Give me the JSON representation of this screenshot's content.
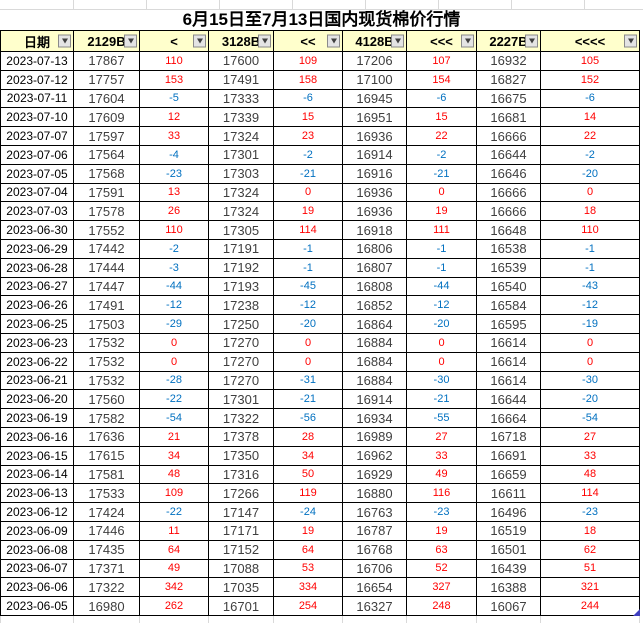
{
  "title": "6月15日至7月13日国内现货棉价行情",
  "colors": {
    "header_bg": "#FFFFCC",
    "header_text": "#000000",
    "positive_change": "#FF0000",
    "negative_change": "#0070C0",
    "price_text": "#3F3F3F",
    "date_text": "#000000",
    "table_border": "#000000",
    "sheet_gridline": "#D9D9D9",
    "selection_handle": "#3F3FBF"
  },
  "icons": {
    "filter_dropdown": "chevron-down"
  },
  "table": {
    "columns": [
      {
        "label": "日期",
        "type": "date"
      },
      {
        "label": "2129B",
        "type": "price"
      },
      {
        "label": "<",
        "type": "change"
      },
      {
        "label": "3128B",
        "type": "price"
      },
      {
        "label": "<<",
        "type": "change"
      },
      {
        "label": "4128B",
        "type": "price"
      },
      {
        "label": "<<<",
        "type": "change"
      },
      {
        "label": "2227B",
        "type": "price"
      },
      {
        "label": "<<<<",
        "type": "change"
      }
    ],
    "rows": [
      {
        "date": "2023-07-13",
        "values": [
          17867,
          110,
          17600,
          109,
          17206,
          107,
          16932,
          105
        ]
      },
      {
        "date": "2023-07-12",
        "values": [
          17757,
          153,
          17491,
          158,
          17100,
          154,
          16827,
          152
        ]
      },
      {
        "date": "2023-07-11",
        "values": [
          17604,
          -5,
          17333,
          -6,
          16945,
          -6,
          16675,
          -6
        ]
      },
      {
        "date": "2023-07-10",
        "values": [
          17609,
          12,
          17339,
          15,
          16951,
          15,
          16681,
          14
        ]
      },
      {
        "date": "2023-07-07",
        "values": [
          17597,
          33,
          17324,
          23,
          16936,
          22,
          16666,
          22
        ]
      },
      {
        "date": "2023-07-06",
        "values": [
          17564,
          -4,
          17301,
          -2,
          16914,
          -2,
          16644,
          -2
        ]
      },
      {
        "date": "2023-07-05",
        "values": [
          17568,
          -23,
          17303,
          -21,
          16916,
          -21,
          16646,
          -20
        ]
      },
      {
        "date": "2023-07-04",
        "values": [
          17591,
          13,
          17324,
          0,
          16936,
          0,
          16666,
          0
        ]
      },
      {
        "date": "2023-07-03",
        "values": [
          17578,
          26,
          17324,
          19,
          16936,
          19,
          16666,
          18
        ]
      },
      {
        "date": "2023-06-30",
        "values": [
          17552,
          110,
          17305,
          114,
          16918,
          111,
          16648,
          110
        ]
      },
      {
        "date": "2023-06-29",
        "values": [
          17442,
          -2,
          17191,
          -1,
          16806,
          -1,
          16538,
          -1
        ]
      },
      {
        "date": "2023-06-28",
        "values": [
          17444,
          -3,
          17192,
          -1,
          16807,
          -1,
          16539,
          -1
        ]
      },
      {
        "date": "2023-06-27",
        "values": [
          17447,
          -44,
          17193,
          -45,
          16808,
          -44,
          16540,
          -43
        ]
      },
      {
        "date": "2023-06-26",
        "values": [
          17491,
          -12,
          17238,
          -12,
          16852,
          -12,
          16584,
          -12
        ]
      },
      {
        "date": "2023-06-25",
        "values": [
          17503,
          -29,
          17250,
          -20,
          16864,
          -20,
          16595,
          -19
        ]
      },
      {
        "date": "2023-06-23",
        "values": [
          17532,
          0,
          17270,
          0,
          16884,
          0,
          16614,
          0
        ]
      },
      {
        "date": "2023-06-22",
        "values": [
          17532,
          0,
          17270,
          0,
          16884,
          0,
          16614,
          0
        ]
      },
      {
        "date": "2023-06-21",
        "values": [
          17532,
          -28,
          17270,
          -31,
          16884,
          -30,
          16614,
          -30
        ]
      },
      {
        "date": "2023-06-20",
        "values": [
          17560,
          -22,
          17301,
          -21,
          16914,
          -21,
          16644,
          -20
        ]
      },
      {
        "date": "2023-06-19",
        "values": [
          17582,
          -54,
          17322,
          -56,
          16934,
          -55,
          16664,
          -54
        ]
      },
      {
        "date": "2023-06-16",
        "values": [
          17636,
          21,
          17378,
          28,
          16989,
          27,
          16718,
          27
        ]
      },
      {
        "date": "2023-06-15",
        "values": [
          17615,
          34,
          17350,
          34,
          16962,
          33,
          16691,
          33
        ]
      },
      {
        "date": "2023-06-14",
        "values": [
          17581,
          48,
          17316,
          50,
          16929,
          49,
          16659,
          48
        ]
      },
      {
        "date": "2023-06-13",
        "values": [
          17533,
          109,
          17266,
          119,
          16880,
          116,
          16611,
          114
        ]
      },
      {
        "date": "2023-06-12",
        "values": [
          17424,
          -22,
          17147,
          -24,
          16763,
          -23,
          16496,
          -23
        ]
      },
      {
        "date": "2023-06-09",
        "values": [
          17446,
          11,
          17171,
          19,
          16787,
          19,
          16519,
          18
        ]
      },
      {
        "date": "2023-06-08",
        "values": [
          17435,
          64,
          17152,
          64,
          16768,
          63,
          16501,
          62
        ]
      },
      {
        "date": "2023-06-07",
        "values": [
          17371,
          49,
          17088,
          53,
          16706,
          52,
          16439,
          51
        ]
      },
      {
        "date": "2023-06-06",
        "values": [
          17322,
          342,
          17035,
          334,
          16654,
          327,
          16388,
          321
        ]
      },
      {
        "date": "2023-06-05",
        "values": [
          16980,
          262,
          16701,
          254,
          16327,
          248,
          16067,
          244
        ]
      }
    ]
  }
}
